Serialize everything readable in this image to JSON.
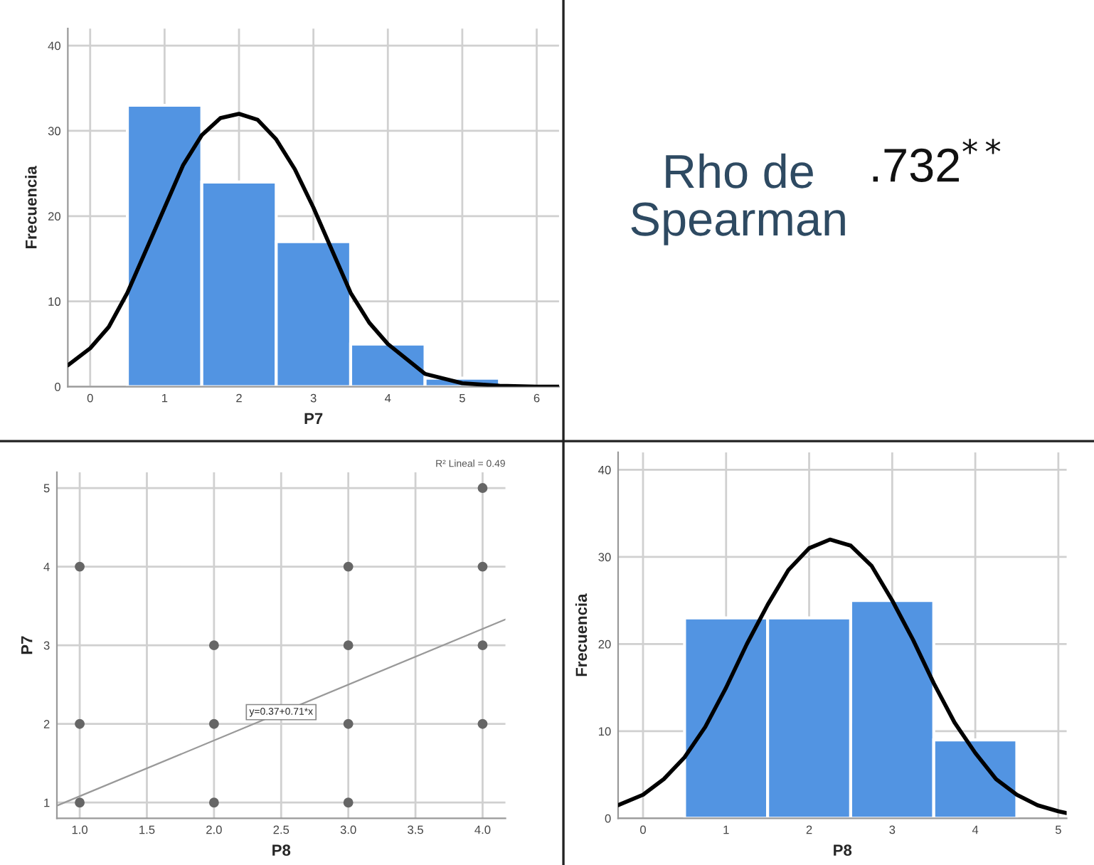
{
  "chart_data": [
    {
      "type": "histogram",
      "xlabel": "P7",
      "ylabel": "Frecuencia",
      "bins": [
        0.5,
        1.5,
        2.5,
        3.5,
        4.5,
        5.5
      ],
      "values": [
        33,
        24,
        17,
        5,
        1
      ],
      "color": "#5294e2",
      "xlim": [
        -0.3,
        6.3
      ],
      "xticks": [
        0,
        1,
        2,
        3,
        4,
        5,
        6
      ],
      "ylim": [
        0,
        42
      ],
      "yticks": [
        0,
        10,
        20,
        30,
        40
      ],
      "grid": true,
      "series": [
        {
          "type": "line",
          "color": "#000000",
          "x": [
            -0.3,
            0,
            0.25,
            0.5,
            0.75,
            1,
            1.25,
            1.5,
            1.75,
            2,
            2.25,
            2.5,
            2.75,
            3,
            3.25,
            3.5,
            3.75,
            4,
            4.5,
            5,
            5.5,
            6,
            6.3
          ],
          "values": [
            2.5,
            4.5,
            7,
            11,
            16,
            21,
            26,
            29.5,
            31.5,
            32,
            31.3,
            29,
            25.5,
            21,
            16,
            11,
            7.5,
            5,
            1.5,
            0.4,
            0.1,
            0,
            0
          ]
        }
      ]
    },
    {
      "type": "other",
      "annotations": [
        "Rho de\nSpearman",
        ".732$^{**}$"
      ]
    },
    {
      "type": "scatter",
      "xlabel": "P8",
      "ylabel": "P7",
      "xlim": [
        0.83,
        4.17
      ],
      "ylim": [
        0.8,
        5.2
      ],
      "xticks": [
        {
          "value": 1,
          "label": "1.0"
        },
        {
          "value": 1.5,
          "label": "1.5"
        },
        {
          "value": 2,
          "label": "2.0"
        },
        {
          "value": 2.5,
          "label": "2.5"
        },
        {
          "value": 3,
          "label": "3.0"
        },
        {
          "value": 3.5,
          "label": "3.5"
        },
        {
          "value": 4,
          "label": "4.0"
        }
      ],
      "yticks": [
        1,
        2,
        3,
        4,
        5
      ],
      "grid": true,
      "series": [
        {
          "type": "scatter",
          "marker": "circle",
          "color": "#666666",
          "x": [
            1,
            1,
            1,
            2,
            2,
            2,
            3,
            3,
            3,
            3,
            4,
            4,
            4,
            4
          ],
          "values": [
            1,
            2,
            4,
            1,
            2,
            3,
            1,
            2,
            3,
            4,
            2,
            3,
            4,
            5
          ]
        },
        {
          "type": "line",
          "color": "#999999",
          "x": [
            0.83,
            4.17
          ],
          "values": [
            0.96,
            3.33
          ]
        }
      ],
      "annotations": [
        {
          "text": "y=0.37+0.71*x",
          "x": 2.5,
          "y": 2.15
        },
        "R² Lineal = 0.49"
      ]
    },
    {
      "type": "histogram",
      "xlabel": "P8",
      "ylabel": "Frecuencia",
      "bins": [
        0.5,
        1.5,
        2.5,
        3.5,
        4.5
      ],
      "values": [
        23,
        23,
        25,
        9
      ],
      "color": "#5294e2",
      "xlim": [
        -0.3,
        5.1
      ],
      "xticks": [
        0,
        1,
        2,
        3,
        4,
        5
      ],
      "ylim": [
        0,
        42
      ],
      "yticks": [
        0,
        10,
        20,
        30,
        40
      ],
      "grid": true,
      "series": [
        {
          "type": "line",
          "color": "#000000",
          "x": [
            -0.3,
            0,
            0.25,
            0.5,
            0.75,
            1,
            1.25,
            1.5,
            1.75,
            2,
            2.25,
            2.5,
            2.75,
            3,
            3.25,
            3.5,
            3.75,
            4,
            4.25,
            4.5,
            4.75,
            5,
            5.1
          ],
          "values": [
            1.5,
            2.7,
            4.5,
            7,
            10.5,
            15,
            20,
            24.5,
            28.5,
            31,
            32,
            31.3,
            29,
            25,
            20.5,
            15.5,
            11,
            7.5,
            4.5,
            2.7,
            1.5,
            0.8,
            0.6
          ]
        }
      ]
    }
  ]
}
